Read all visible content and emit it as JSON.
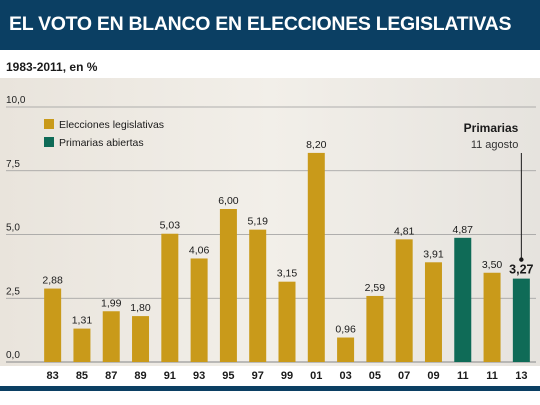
{
  "header": {
    "title": "EL VOTO EN BLANCO EN ELECCIONES LEGISLATIVAS",
    "subtitle": "1983-2011, en %"
  },
  "colors": {
    "title_bar": "#0b3f63",
    "legislativas": "#c99a1a",
    "primarias": "#0f6b57"
  },
  "chart_data": {
    "type": "bar",
    "categories": [
      "83",
      "85",
      "87",
      "89",
      "91",
      "93",
      "95",
      "97",
      "99",
      "01",
      "03",
      "05",
      "07",
      "09",
      "11",
      "11",
      "13"
    ],
    "values": [
      2.88,
      1.31,
      1.99,
      1.8,
      5.03,
      4.06,
      6.0,
      5.19,
      3.15,
      8.2,
      0.96,
      2.59,
      4.81,
      3.91,
      4.87,
      3.5,
      3.27
    ],
    "value_labels": [
      "2,88",
      "1,31",
      "1,99",
      "1,80",
      "5,03",
      "4,06",
      "6,00",
      "5,19",
      "3,15",
      "8,20",
      "0,96",
      "2,59",
      "4,81",
      "3,91",
      "4,87",
      "3,50",
      "3,27"
    ],
    "series_by_bar": [
      "legislativas",
      "legislativas",
      "legislativas",
      "legislativas",
      "legislativas",
      "legislativas",
      "legislativas",
      "legislativas",
      "legislativas",
      "legislativas",
      "legislativas",
      "legislativas",
      "legislativas",
      "legislativas",
      "primarias",
      "legislativas",
      "primarias"
    ],
    "series": [
      {
        "key": "legislativas",
        "name": "Elecciones legislativas"
      },
      {
        "key": "primarias",
        "name": "Primarias abiertas"
      }
    ],
    "yticks": [
      "0,0",
      "2,5",
      "5,0",
      "7,5",
      "10,0"
    ],
    "ylim": [
      0,
      10
    ],
    "grid": true,
    "legend_position": "top-left",
    "annotation": {
      "title": "Primarias",
      "subtitle": "11 agosto",
      "target_index": 16
    }
  }
}
